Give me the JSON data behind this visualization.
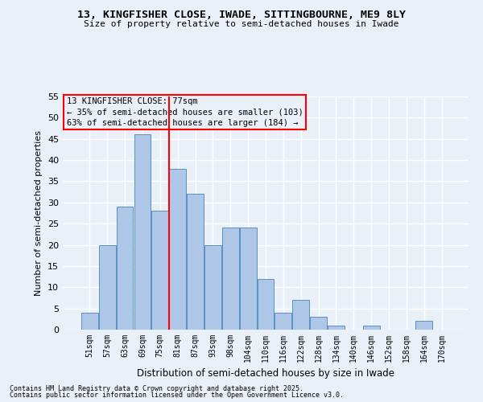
{
  "title1": "13, KINGFISHER CLOSE, IWADE, SITTINGBOURNE, ME9 8LY",
  "title2": "Size of property relative to semi-detached houses in Iwade",
  "xlabel": "Distribution of semi-detached houses by size in Iwade",
  "ylabel": "Number of semi-detached properties",
  "categories": [
    "51sqm",
    "57sqm",
    "63sqm",
    "69sqm",
    "75sqm",
    "81sqm",
    "87sqm",
    "93sqm",
    "98sqm",
    "104sqm",
    "110sqm",
    "116sqm",
    "122sqm",
    "128sqm",
    "134sqm",
    "140sqm",
    "146sqm",
    "152sqm",
    "158sqm",
    "164sqm",
    "170sqm"
  ],
  "values": [
    4,
    20,
    29,
    46,
    28,
    38,
    32,
    20,
    24,
    24,
    12,
    4,
    7,
    3,
    1,
    0,
    1,
    0,
    0,
    2,
    0
  ],
  "bar_color": "#aec6e8",
  "bar_edge_color": "#5a8fc0",
  "red_line_x": 4.5,
  "annotation_text": "13 KINGFISHER CLOSE: 77sqm\n← 35% of semi-detached houses are smaller (103)\n63% of semi-detached houses are larger (184) →",
  "footer1": "Contains HM Land Registry data © Crown copyright and database right 2025.",
  "footer2": "Contains public sector information licensed under the Open Government Licence v3.0.",
  "ylim": [
    0,
    55
  ],
  "yticks": [
    0,
    5,
    10,
    15,
    20,
    25,
    30,
    35,
    40,
    45,
    50,
    55
  ],
  "bg_color": "#eaf0f8",
  "grid_color": "#ffffff"
}
